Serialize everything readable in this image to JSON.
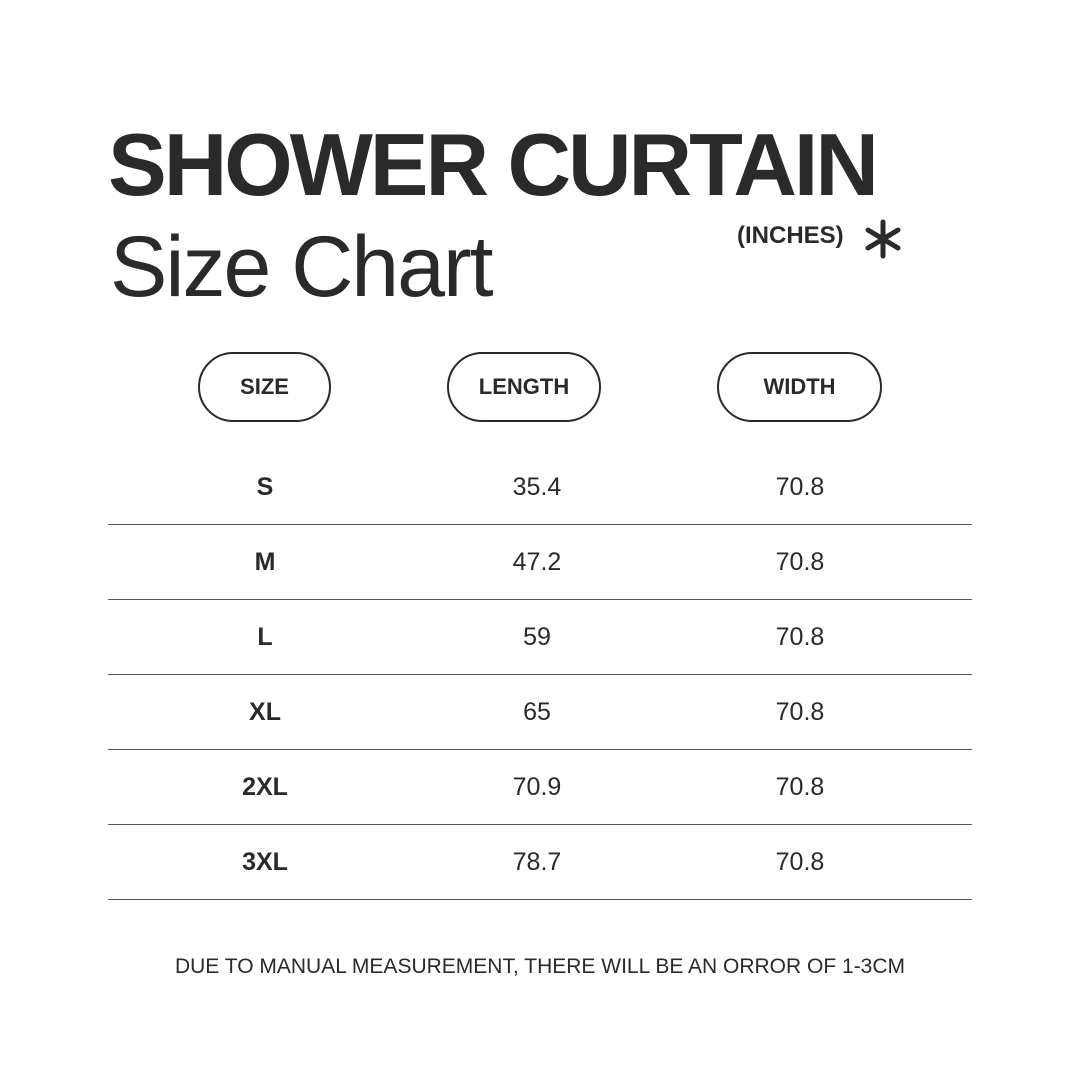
{
  "title": "SHOWER CURTAIN",
  "subtitle": "Size Chart",
  "unit": "(INCHES)",
  "unit_icon": "asterisk-icon",
  "text_color": "#2a2a2a",
  "table": {
    "headers": [
      "SIZE",
      "LENGTH",
      "WIDTH"
    ],
    "rows": [
      [
        "S",
        "35.4",
        "70.8"
      ],
      [
        "M",
        "47.2",
        "70.8"
      ],
      [
        "L",
        "59",
        "70.8"
      ],
      [
        "XL",
        "65",
        "70.8"
      ],
      [
        "2XL",
        "70.9",
        "70.8"
      ],
      [
        "3XL",
        "78.7",
        "70.8"
      ]
    ]
  },
  "footer": "DUE TO MANUAL MEASUREMENT, THERE WILL BE AN ORROR OF 1-3CM"
}
